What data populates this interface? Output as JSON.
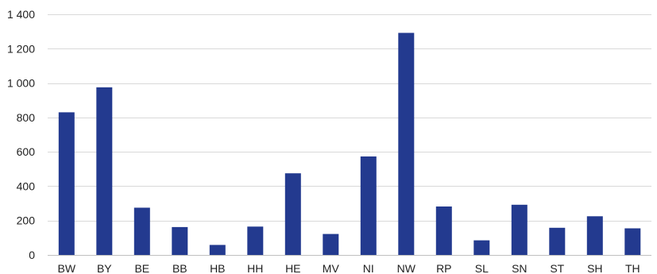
{
  "chart_data": {
    "type": "bar",
    "title": "",
    "xlabel": "",
    "ylabel": "",
    "categories": [
      "BW",
      "BY",
      "BE",
      "BB",
      "HB",
      "HH",
      "HE",
      "MV",
      "NI",
      "NW",
      "RP",
      "SL",
      "SN",
      "ST",
      "SH",
      "TH"
    ],
    "values": [
      830,
      975,
      275,
      162,
      58,
      165,
      475,
      122,
      573,
      1292,
      282,
      85,
      292,
      158,
      225,
      155
    ],
    "ylim": [
      0,
      1400
    ],
    "yticks": [
      0,
      200,
      400,
      600,
      800,
      1000,
      1200,
      1400
    ],
    "ytick_labels": [
      "0",
      "200",
      "400",
      "600",
      "800",
      "1 000",
      "1 200",
      "1 400"
    ],
    "grid": true,
    "legend": "none",
    "bar_color": "#233a8f",
    "grid_color": "#d9d9d9",
    "text_color": "#1f1f1f"
  }
}
